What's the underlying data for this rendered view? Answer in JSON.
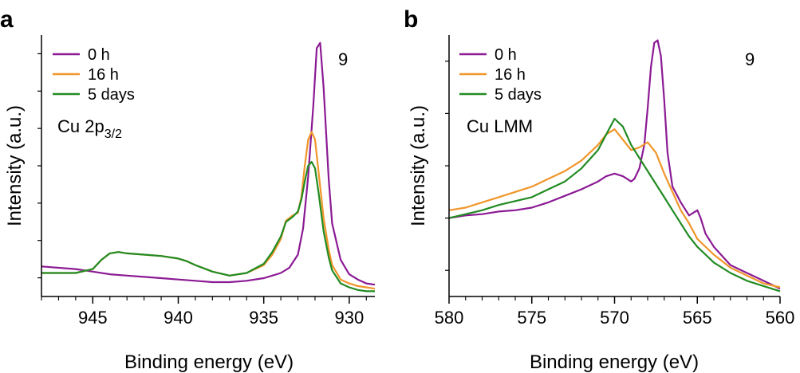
{
  "colors": {
    "purple": "#8b1a94",
    "orange": "#f0962a",
    "green": "#228b22"
  },
  "chart_data": [
    {
      "type": "line",
      "panel_label": "a",
      "xlabel": "Binding energy (eV)",
      "ylabel": "Intensity (a.u.)",
      "xlim": [
        948,
        928.5
      ],
      "ylim": [
        0,
        100
      ],
      "x_ticks": [
        945,
        940,
        935,
        930
      ],
      "x_tick_labels": [
        "945",
        "940",
        "935",
        "930"
      ],
      "annotation_number": "9",
      "region_label": {
        "main": "Cu 2p",
        "sub": "3/2"
      },
      "legend": [
        "0 h",
        "16 h",
        "5 days"
      ],
      "series": [
        {
          "name": "0 h",
          "color": "#8b1a94",
          "x": [
            948,
            946,
            945,
            944,
            943,
            942,
            941,
            940,
            939,
            938,
            937,
            936,
            935,
            934.5,
            934,
            933.5,
            933,
            932.7,
            932.4,
            932.1,
            931.9,
            931.7,
            931.5,
            931.2,
            931,
            930.5,
            930,
            929.5,
            929,
            928.5
          ],
          "y": [
            11.5,
            10.5,
            9.5,
            8.5,
            8.0,
            7.5,
            7.0,
            6.5,
            6.0,
            5.5,
            5.5,
            6.0,
            7.0,
            8.0,
            9.0,
            11.0,
            16.0,
            26.0,
            46.0,
            73.0,
            95.0,
            97.0,
            80.0,
            45.0,
            28.0,
            14.0,
            8.5,
            6.5,
            5.0,
            4.5
          ]
        },
        {
          "name": "16 h",
          "color": "#f0962a",
          "x": [
            948,
            947,
            946,
            945,
            944.5,
            944,
            943.5,
            943,
            942,
            941,
            940,
            939.5,
            939,
            938,
            937,
            936,
            935,
            934.5,
            934,
            933.7,
            933.3,
            933,
            932.8,
            932.6,
            932.4,
            932.2,
            932,
            931.8,
            931.5,
            931.2,
            931,
            930.5,
            930,
            929.5,
            929,
            928.5
          ],
          "y": [
            9.0,
            9.0,
            9.0,
            10.5,
            14.0,
            16.5,
            17.0,
            16.5,
            16.0,
            15.5,
            14.5,
            13.5,
            12.0,
            9.5,
            8.0,
            9.0,
            12.0,
            16.0,
            22.0,
            29.0,
            31.0,
            32.0,
            38.0,
            50.0,
            60.0,
            63.0,
            60.0,
            48.0,
            30.0,
            18.0,
            12.0,
            6.5,
            5.0,
            4.0,
            3.5,
            3.0
          ]
        },
        {
          "name": "5 days",
          "color": "#228b22",
          "x": [
            948,
            947,
            946,
            945,
            944.5,
            944,
            943.5,
            943,
            942,
            941,
            940,
            939.5,
            939,
            938,
            937,
            936,
            935,
            934.5,
            934,
            933.7,
            933.3,
            933,
            932.8,
            932.6,
            932.4,
            932.2,
            932,
            931.8,
            931.5,
            931.2,
            931,
            930.5,
            930,
            929.5,
            929,
            928.5
          ],
          "y": [
            9.0,
            9.0,
            9.0,
            10.5,
            14.0,
            16.5,
            17.0,
            16.5,
            16.0,
            15.5,
            14.5,
            13.5,
            12.0,
            9.5,
            8.0,
            9.0,
            12.5,
            17.0,
            23.0,
            28.5,
            30.5,
            32.5,
            37.0,
            44.0,
            50.0,
            51.5,
            49.0,
            40.0,
            25.0,
            15.0,
            10.0,
            5.0,
            3.5,
            2.5,
            2.0,
            2.0
          ]
        }
      ]
    },
    {
      "type": "line",
      "panel_label": "b",
      "xlabel": "Binding energy (eV)",
      "ylabel": "Intensity (a.u.)",
      "xlim": [
        580,
        560
      ],
      "ylim": [
        0,
        100
      ],
      "x_ticks": [
        580,
        575,
        570,
        565,
        560
      ],
      "x_tick_labels": [
        "580",
        "575",
        "570",
        "565",
        "560"
      ],
      "annotation_number": "9",
      "region_label": {
        "main": "Cu LMM",
        "sub": ""
      },
      "legend": [
        "0 h",
        "16 h",
        "5 days"
      ],
      "series": [
        {
          "name": "0 h",
          "color": "#8b1a94",
          "x": [
            580,
            579,
            578,
            577,
            576,
            575,
            574,
            573,
            572,
            571,
            570.5,
            570,
            569.5,
            569,
            568.8,
            568.5,
            568.2,
            568,
            567.8,
            567.6,
            567.4,
            567.2,
            567,
            566.8,
            566.5,
            566,
            565.5,
            565,
            564.8,
            564.5,
            564,
            563,
            562,
            561,
            560
          ],
          "y": [
            30.0,
            31.0,
            31.5,
            32.5,
            33.0,
            34.0,
            36.0,
            38.5,
            41.0,
            44.0,
            46.0,
            47.0,
            46.0,
            44.0,
            45.0,
            49.0,
            58.0,
            72.0,
            88.0,
            97.0,
            98.0,
            92.0,
            75.0,
            55.0,
            42.0,
            36.0,
            31.0,
            33.0,
            30.0,
            24.0,
            19.0,
            12.0,
            9.0,
            6.0,
            3.0
          ]
        },
        {
          "name": "16 h",
          "color": "#f0962a",
          "x": [
            580,
            579,
            578,
            577,
            576,
            575,
            574,
            573,
            572,
            571,
            570.5,
            570,
            569.5,
            569,
            568.5,
            568,
            567.5,
            567,
            566.5,
            566,
            565.5,
            565,
            564,
            563,
            562,
            561,
            560
          ],
          "y": [
            33.0,
            34.0,
            36.0,
            38.0,
            40.0,
            42.0,
            45.0,
            48.0,
            52.0,
            58.0,
            62.0,
            64.0,
            60.0,
            56.0,
            57.0,
            59.0,
            55.0,
            47.0,
            40.0,
            33.0,
            28.0,
            22.0,
            16.0,
            11.0,
            8.0,
            5.0,
            3.5
          ]
        },
        {
          "name": "5 days",
          "color": "#228b22",
          "x": [
            580,
            579,
            578,
            577,
            576,
            575,
            574,
            573,
            572,
            571,
            570.5,
            570,
            569.5,
            569,
            568.5,
            568,
            567.5,
            567,
            566.5,
            566,
            565.5,
            565,
            564,
            563,
            562,
            561,
            560
          ],
          "y": [
            30.0,
            31.5,
            33.0,
            35.0,
            36.5,
            38.0,
            41.0,
            44.0,
            49.0,
            56.0,
            62.0,
            68.0,
            65.0,
            58.0,
            53.0,
            48.0,
            43.0,
            38.0,
            33.0,
            28.0,
            23.0,
            19.0,
            13.0,
            9.0,
            6.0,
            4.0,
            2.0
          ]
        }
      ]
    }
  ]
}
